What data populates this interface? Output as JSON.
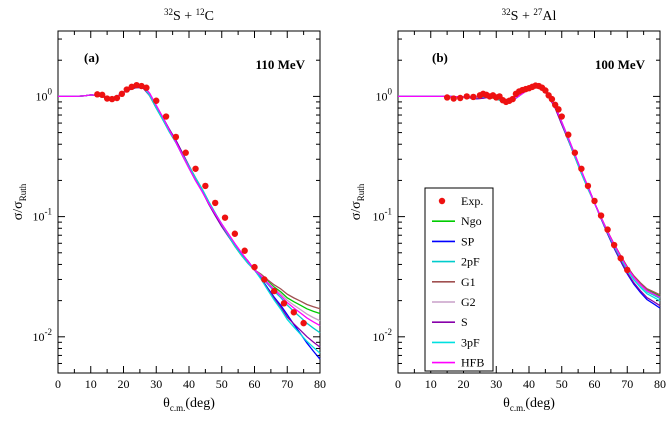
{
  "figure": {
    "xlabel_main": "θ",
    "xlabel_sub": "c.m.",
    "xlabel_unit": "(deg)",
    "ylabel_main": "σ/σ",
    "ylabel_sub": "Ruth"
  },
  "chart_data": [
    {
      "type": "line",
      "panel_label": "(a)",
      "energy_label": "110 MeV",
      "title_parts": {
        "pre1": "32",
        "el1": "S + ",
        "pre2": "12",
        "el2": "C"
      },
      "xlabel": "θc.m.(deg)",
      "ylabel": "σ/σRuth",
      "xlim": [
        0,
        80
      ],
      "ylim": [
        0.005,
        3.5
      ],
      "yscale": "log",
      "x_ticks": [
        0,
        10,
        20,
        30,
        40,
        50,
        60,
        70,
        80
      ],
      "x_tick_labels": [
        "0",
        "10",
        "20",
        "30",
        "40",
        "50",
        "60",
        "70",
        "80"
      ],
      "y_ticks": [
        0.01,
        0.1,
        1
      ],
      "y_tick_labels": [
        {
          "base": "10",
          "exp": "-2"
        },
        {
          "base": "10",
          "exp": "-1"
        },
        {
          "base": "10",
          "exp": "0"
        }
      ],
      "theory_base": {
        "x": [
          0,
          5,
          8,
          10,
          12,
          14,
          16,
          18,
          20,
          22,
          24,
          26,
          28,
          30,
          32,
          34,
          36,
          38,
          40,
          42,
          44,
          46,
          48,
          50,
          52,
          54,
          56,
          58,
          60,
          62,
          64,
          66,
          68,
          70,
          72,
          74,
          76,
          78,
          80
        ],
        "y": [
          1.0,
          1.0,
          1.01,
          1.03,
          1.02,
          0.99,
          0.97,
          1.0,
          1.08,
          1.17,
          1.22,
          1.2,
          1.03,
          0.82,
          0.66,
          0.52,
          0.42,
          0.33,
          0.26,
          0.205,
          0.165,
          0.13,
          0.105,
          0.085,
          0.07,
          0.058,
          0.049,
          0.042,
          0.036,
          0.031,
          0.026,
          0.022,
          0.019,
          0.016,
          0.0138,
          0.012,
          0.0104,
          0.0092,
          0.0082
        ]
      },
      "series": [
        {
          "name": "Ngo",
          "color": "#00cc00",
          "tail": [
            0.0,
            0.12,
            0.28
          ]
        },
        {
          "name": "SP",
          "color": "#0000ff",
          "tail": [
            0.0,
            -0.02,
            -0.1
          ]
        },
        {
          "name": "2pF",
          "color": "#00cccc",
          "tail": [
            0.0,
            0.06,
            0.12
          ]
        },
        {
          "name": "G1",
          "color": "#a05050",
          "tail": [
            0.0,
            0.15,
            0.32
          ]
        },
        {
          "name": "G2",
          "color": "#c8a0c8",
          "tail": [
            0.0,
            0.1,
            0.22
          ]
        },
        {
          "name": "S",
          "color": "#8800aa",
          "tail": [
            0.0,
            -0.04,
            0.0
          ]
        },
        {
          "name": "3pF",
          "color": "#00e0e0",
          "tail": [
            0.0,
            -0.06,
            -0.05
          ]
        },
        {
          "name": "HFB",
          "color": "#ff00ff",
          "tail": [
            0.0,
            0.08,
            0.18
          ]
        }
      ],
      "experiment": {
        "name": "Exp.",
        "color": "#ee1111",
        "x": [
          12,
          13.5,
          15,
          16.5,
          18,
          19.5,
          21,
          22.5,
          24,
          25.5,
          27,
          30,
          33,
          36,
          39,
          42,
          45,
          48,
          51,
          54,
          57,
          60,
          63,
          66,
          69,
          72,
          75
        ],
        "y": [
          1.04,
          1.03,
          0.96,
          0.95,
          0.97,
          1.05,
          1.14,
          1.2,
          1.24,
          1.22,
          1.18,
          0.92,
          0.68,
          0.46,
          0.34,
          0.25,
          0.18,
          0.13,
          0.098,
          0.072,
          0.052,
          0.038,
          0.03,
          0.024,
          0.019,
          0.016,
          0.013
        ]
      }
    },
    {
      "type": "line",
      "panel_label": "(b)",
      "energy_label": "100 MeV",
      "title_parts": {
        "pre1": "32",
        "el1": "S + ",
        "pre2": "27",
        "el2": "Al"
      },
      "xlabel": "θc.m.(deg)",
      "ylabel": "σ/σRuth",
      "xlim": [
        0,
        80
      ],
      "ylim": [
        0.005,
        3.5
      ],
      "yscale": "log",
      "x_ticks": [
        0,
        10,
        20,
        30,
        40,
        50,
        60,
        70,
        80
      ],
      "x_tick_labels": [
        "0",
        "10",
        "20",
        "30",
        "40",
        "50",
        "60",
        "70",
        "80"
      ],
      "y_ticks": [
        0.01,
        0.1,
        1
      ],
      "y_tick_labels": [
        {
          "base": "10",
          "exp": "-2"
        },
        {
          "base": "10",
          "exp": "-1"
        },
        {
          "base": "10",
          "exp": "0"
        }
      ],
      "theory_base": {
        "x": [
          0,
          10,
          15,
          20,
          24,
          26,
          28,
          30,
          32,
          34,
          36,
          38,
          40,
          42,
          44,
          46,
          48,
          50,
          52,
          54,
          56,
          58,
          60,
          62,
          64,
          66,
          68,
          70,
          72,
          74,
          76,
          78,
          80
        ],
        "y": [
          1.0,
          1.0,
          1.0,
          0.99,
          0.98,
          0.99,
          1.0,
          0.98,
          0.93,
          0.92,
          0.98,
          1.08,
          1.18,
          1.24,
          1.18,
          1.02,
          0.82,
          0.6,
          0.44,
          0.32,
          0.235,
          0.175,
          0.13,
          0.097,
          0.073,
          0.056,
          0.044,
          0.035,
          0.029,
          0.025,
          0.022,
          0.0205,
          0.019
        ]
      },
      "series": [
        {
          "name": "Ngo",
          "color": "#00cc00",
          "tail": [
            0.0,
            0.03,
            0.06
          ]
        },
        {
          "name": "SP",
          "color": "#0000ff",
          "tail": [
            0.0,
            -0.02,
            -0.04
          ]
        },
        {
          "name": "2pF",
          "color": "#00cccc",
          "tail": [
            0.0,
            0.02,
            0.04
          ]
        },
        {
          "name": "G1",
          "color": "#a05050",
          "tail": [
            0.0,
            0.04,
            0.07
          ]
        },
        {
          "name": "G2",
          "color": "#c8a0c8",
          "tail": [
            0.0,
            0.02,
            0.05
          ]
        },
        {
          "name": "S",
          "color": "#8800aa",
          "tail": [
            0.0,
            -0.01,
            -0.02
          ]
        },
        {
          "name": "3pF",
          "color": "#00e0e0",
          "tail": [
            0.0,
            0.01,
            0.02
          ]
        },
        {
          "name": "HFB",
          "color": "#ff00ff",
          "tail": [
            0.0,
            0.03,
            0.05
          ]
        }
      ],
      "experiment": {
        "name": "Exp.",
        "color": "#ee1111",
        "x": [
          15,
          17,
          19,
          21,
          23,
          25,
          26,
          27,
          28,
          29,
          30,
          31,
          32,
          33,
          34,
          35,
          36,
          37,
          38,
          39,
          40,
          41,
          42,
          43,
          44,
          45,
          46,
          47,
          48,
          49,
          50,
          52,
          54,
          56,
          58,
          60,
          62,
          64,
          66,
          68,
          70
        ],
        "y": [
          0.98,
          0.96,
          0.97,
          1.0,
          0.99,
          1.02,
          1.05,
          1.03,
          1.0,
          1.02,
          0.98,
          1.0,
          0.93,
          0.9,
          0.92,
          0.95,
          1.05,
          1.1,
          1.13,
          1.15,
          1.17,
          1.2,
          1.23,
          1.22,
          1.18,
          1.12,
          1.02,
          0.95,
          0.85,
          0.78,
          0.68,
          0.48,
          0.34,
          0.25,
          0.18,
          0.135,
          0.102,
          0.078,
          0.058,
          0.045,
          0.036
        ]
      },
      "legend": {
        "position": "center-left",
        "entries": [
          "Exp.",
          "Ngo",
          "SP",
          "2pF",
          "G1",
          "G2",
          "S",
          "3pF",
          "HFB"
        ]
      }
    }
  ]
}
